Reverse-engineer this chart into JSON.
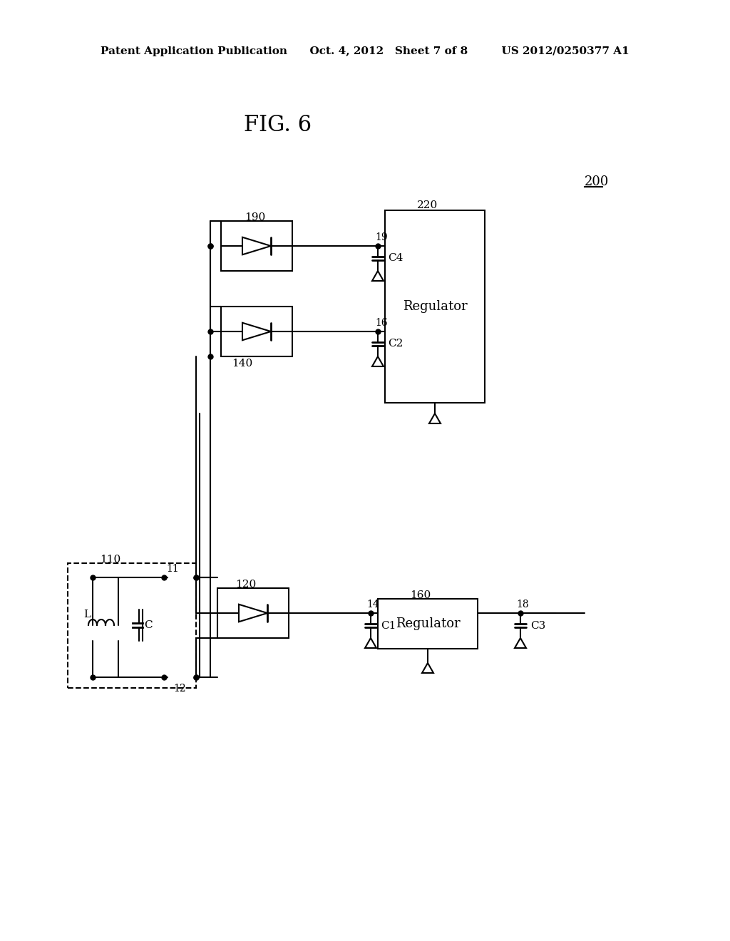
{
  "background_color": "#ffffff",
  "header_text": "Patent Application Publication",
  "header_date": "Oct. 4, 2012",
  "header_sheet": "Sheet 7 of 8",
  "header_patent": "US 2012/0250377 A1",
  "fig_label": "FIG. 6",
  "component_200": "200",
  "component_190": "190",
  "component_140": "140",
  "component_110": "110",
  "component_120": "120",
  "component_160": "160",
  "component_220": "220",
  "node_11": "11",
  "node_12": "12",
  "node_14": "14",
  "node_16": "16",
  "node_18": "18",
  "node_19": "19",
  "cap_C1": "C1",
  "cap_C2": "C2",
  "cap_C3": "C3",
  "cap_C4": "C4",
  "reg_label": "Regulator",
  "ind_label": "L",
  "cap_label": "C"
}
